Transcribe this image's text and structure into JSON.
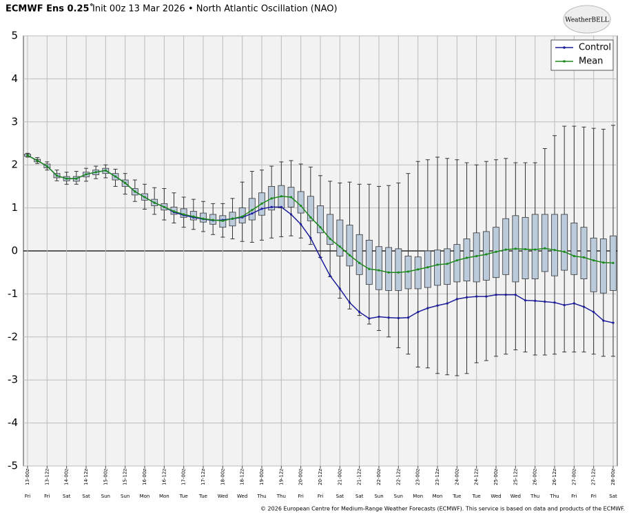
{
  "chart_data": {
    "type": "boxplot",
    "title": [
      "ECMWF Ens 0.25˚",
      "Init 00z 13 Mar 2026 • North Atlantic Oscillation (NAO)"
    ],
    "logo": "WeatherBELL",
    "footer": "© 2026 European Centre for Medium-Range Weather Forecasts (ECMWF). This service is based on data and products of the ECMWF.",
    "categories": [
      "13-00z",
      null,
      "13-12z",
      null,
      "14-00z",
      null,
      "14-12z",
      null,
      "15-00z",
      null,
      "15-12z",
      null,
      "16-00z",
      null,
      "16-12z",
      null,
      "17-00z",
      null,
      "17-12z",
      null,
      "18-00z",
      null,
      "18-12z",
      null,
      "19-00z",
      null,
      "19-12z",
      null,
      "20-00z",
      null,
      "20-12z",
      null,
      "21-00z",
      null,
      "21-12z",
      null,
      "22-00z",
      null,
      "22-12z",
      null,
      "23-00z",
      null,
      "23-12z",
      null,
      "24-00z",
      null,
      "24-12z",
      null,
      "25-00z",
      null,
      "25-12z",
      null,
      "26-00z",
      null,
      "26-12z",
      null,
      "27-00z",
      null,
      "27-12z",
      null,
      "28-00z"
    ],
    "day_labels": [
      "Fri",
      null,
      "Fri",
      null,
      "Sat",
      null,
      "Sat",
      null,
      "Sun",
      null,
      "Sun",
      null,
      "Mon",
      null,
      "Mon",
      null,
      "Tue",
      null,
      "Tue",
      null,
      "Wed",
      null,
      "Wed",
      null,
      "Thu",
      null,
      "Thu",
      null,
      "Fri",
      null,
      "Fri",
      null,
      "Sat",
      null,
      "Sat",
      null,
      "Sun",
      null,
      "Sun",
      null,
      "Mon",
      null,
      "Mon",
      null,
      "Tue",
      null,
      "Tue",
      null,
      "Wed",
      null,
      "Wed",
      null,
      "Thu",
      null,
      "Thu",
      null,
      "Fri",
      null,
      "Fri",
      null,
      "Sat"
    ],
    "ylim": [
      -5,
      5
    ],
    "yticks": [
      -5,
      -4,
      -3,
      -2,
      -1,
      0,
      1,
      2,
      3,
      4,
      5
    ],
    "grid": true,
    "legend": "upper right",
    "box_color": "#bccbdc",
    "boxes": {
      "min": [
        2.18,
        2.03,
        1.88,
        1.63,
        1.55,
        1.55,
        1.62,
        1.68,
        1.7,
        1.5,
        1.32,
        1.15,
        0.97,
        0.85,
        0.72,
        0.65,
        0.55,
        0.5,
        0.45,
        0.38,
        0.32,
        0.28,
        0.22,
        0.2,
        0.25,
        0.3,
        0.33,
        0.35,
        0.3,
        0.15,
        -0.15,
        -0.6,
        -1.1,
        -1.35,
        -1.5,
        -1.7,
        -1.85,
        -2.0,
        -2.25,
        -2.4,
        -2.7,
        -2.72,
        -2.85,
        -2.88,
        -2.9,
        -2.85,
        -2.6,
        -2.55,
        -2.45,
        -2.4,
        -2.3,
        -2.35,
        -2.42,
        -2.42,
        -2.4,
        -2.35,
        -2.35,
        -2.35,
        -2.4,
        -2.45,
        -2.45
      ],
      "q1": [
        2.2,
        2.07,
        1.93,
        1.7,
        1.63,
        1.62,
        1.72,
        1.77,
        1.8,
        1.65,
        1.5,
        1.3,
        1.18,
        1.05,
        0.95,
        0.85,
        0.78,
        0.72,
        0.67,
        0.62,
        0.55,
        0.58,
        0.65,
        0.72,
        0.83,
        0.95,
        1.0,
        1.02,
        0.88,
        0.7,
        0.42,
        0.15,
        -0.12,
        -0.35,
        -0.55,
        -0.78,
        -0.9,
        -0.92,
        -0.92,
        -0.88,
        -0.88,
        -0.85,
        -0.8,
        -0.78,
        -0.72,
        -0.7,
        -0.72,
        -0.68,
        -0.62,
        -0.55,
        -0.72,
        -0.65,
        -0.65,
        -0.48,
        -0.58,
        -0.45,
        -0.55,
        -0.65,
        -0.95,
        -0.98,
        -0.92
      ],
      "q3": [
        2.25,
        2.13,
        2.02,
        1.8,
        1.73,
        1.73,
        1.83,
        1.88,
        1.92,
        1.8,
        1.65,
        1.45,
        1.33,
        1.2,
        1.1,
        1.02,
        0.98,
        0.92,
        0.88,
        0.85,
        0.82,
        0.9,
        1.0,
        1.22,
        1.35,
        1.5,
        1.52,
        1.48,
        1.38,
        1.27,
        1.05,
        0.85,
        0.72,
        0.6,
        0.38,
        0.25,
        0.1,
        0.08,
        0.05,
        -0.12,
        -0.14,
        0.0,
        0.02,
        0.05,
        0.15,
        0.28,
        0.42,
        0.45,
        0.55,
        0.75,
        0.82,
        0.78,
        0.85,
        0.85,
        0.85,
        0.85,
        0.65,
        0.55,
        0.3,
        0.28,
        0.35
      ],
      "max": [
        2.27,
        2.17,
        2.07,
        1.88,
        1.83,
        1.85,
        1.92,
        1.97,
        2.0,
        1.9,
        1.8,
        1.65,
        1.55,
        1.47,
        1.45,
        1.35,
        1.25,
        1.2,
        1.15,
        1.1,
        1.1,
        1.22,
        1.6,
        1.85,
        1.88,
        1.97,
        2.07,
        2.1,
        2.02,
        1.95,
        1.75,
        1.62,
        1.58,
        1.6,
        1.55,
        1.55,
        1.5,
        1.52,
        1.58,
        1.8,
        2.08,
        2.12,
        2.18,
        2.15,
        2.12,
        2.05,
        2.0,
        2.08,
        2.12,
        2.15,
        2.05,
        2.05,
        2.05,
        2.38,
        2.68,
        2.9,
        2.9,
        2.88,
        2.85,
        2.83,
        2.92
      ]
    },
    "series": [
      {
        "name": "Control",
        "color": "#1c1c9a",
        "values": [
          2.22,
          2.1,
          1.97,
          1.75,
          1.68,
          1.68,
          1.78,
          1.83,
          1.87,
          1.73,
          1.58,
          1.38,
          1.25,
          1.12,
          1.02,
          0.9,
          0.83,
          0.78,
          0.74,
          0.71,
          0.72,
          0.75,
          0.78,
          0.87,
          0.98,
          1.02,
          1.02,
          0.85,
          0.62,
          0.3,
          -0.15,
          -0.58,
          -0.88,
          -1.2,
          -1.42,
          -1.57,
          -1.53,
          -1.55,
          -1.56,
          -1.55,
          -1.42,
          -1.33,
          -1.27,
          -1.22,
          -1.12,
          -1.08,
          -1.06,
          -1.06,
          -1.02,
          -1.02,
          -1.02,
          -1.15,
          -1.16,
          -1.18,
          -1.2,
          -1.26,
          -1.22,
          -1.3,
          -1.42,
          -1.62,
          -1.67
        ]
      },
      {
        "name": "Mean",
        "color": "#1a8a1a",
        "values": [
          2.22,
          2.1,
          1.97,
          1.75,
          1.68,
          1.68,
          1.78,
          1.83,
          1.87,
          1.73,
          1.58,
          1.38,
          1.25,
          1.12,
          1.02,
          0.92,
          0.85,
          0.8,
          0.75,
          0.72,
          0.7,
          0.75,
          0.8,
          0.95,
          1.1,
          1.22,
          1.27,
          1.25,
          1.05,
          0.78,
          0.55,
          0.28,
          0.1,
          -0.1,
          -0.28,
          -0.42,
          -0.45,
          -0.5,
          -0.5,
          -0.48,
          -0.43,
          -0.38,
          -0.32,
          -0.3,
          -0.22,
          -0.16,
          -0.12,
          -0.08,
          -0.02,
          0.03,
          0.05,
          0.04,
          0.03,
          0.06,
          0.02,
          -0.02,
          -0.12,
          -0.15,
          -0.22,
          -0.27,
          -0.28
        ]
      }
    ]
  }
}
